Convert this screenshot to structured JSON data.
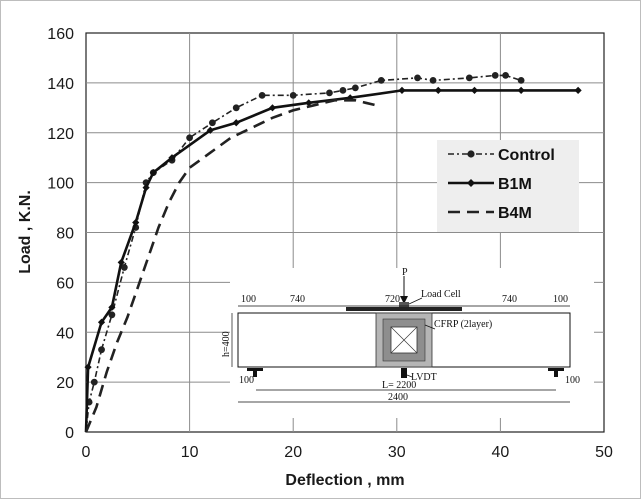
{
  "chart_data": {
    "type": "line",
    "title": "",
    "xlabel": "Deflection , mm",
    "ylabel": "Load , K.N.",
    "xlim": [
      0,
      50
    ],
    "ylim": [
      0,
      160
    ],
    "xticks": [
      0,
      10,
      20,
      30,
      40,
      50
    ],
    "yticks": [
      0,
      20,
      40,
      60,
      80,
      100,
      120,
      140,
      160
    ],
    "grid": true,
    "legend_position": "right",
    "series": [
      {
        "name": "Control",
        "style": "dash-dot",
        "marker": "circle",
        "color": "#222222",
        "points": [
          [
            0,
            0
          ],
          [
            0.3,
            12
          ],
          [
            0.8,
            20
          ],
          [
            1.5,
            33
          ],
          [
            2.5,
            47
          ],
          [
            3.7,
            66
          ],
          [
            4.8,
            82
          ],
          [
            5.8,
            100
          ],
          [
            6.5,
            104
          ],
          [
            8.3,
            109
          ],
          [
            10,
            118
          ],
          [
            12.2,
            124
          ],
          [
            14.5,
            130
          ],
          [
            17,
            135
          ],
          [
            20,
            135
          ],
          [
            23.5,
            136
          ],
          [
            24.8,
            137
          ],
          [
            26,
            138
          ],
          [
            28.5,
            141
          ],
          [
            32,
            142
          ],
          [
            33.5,
            141
          ],
          [
            37,
            142
          ],
          [
            39.5,
            143
          ],
          [
            40.5,
            143
          ],
          [
            42,
            141
          ]
        ]
      },
      {
        "name": "B1M",
        "style": "solid",
        "marker": "diamond",
        "color": "#111111",
        "points": [
          [
            0,
            0
          ],
          [
            0.2,
            26
          ],
          [
            1.5,
            44
          ],
          [
            2.5,
            50
          ],
          [
            3.4,
            68
          ],
          [
            4.8,
            84
          ],
          [
            5.8,
            98
          ],
          [
            6.5,
            104
          ],
          [
            8.3,
            110
          ],
          [
            12,
            121
          ],
          [
            14.5,
            124
          ],
          [
            18,
            130
          ],
          [
            21.5,
            132
          ],
          [
            25.5,
            134
          ],
          [
            30.5,
            137
          ],
          [
            34,
            137
          ],
          [
            37.5,
            137
          ],
          [
            42,
            137
          ],
          [
            47.5,
            137
          ]
        ]
      },
      {
        "name": "B4M",
        "style": "dashed",
        "marker": "none",
        "color": "#222222",
        "points": [
          [
            0,
            0
          ],
          [
            1,
            10
          ],
          [
            2,
            24
          ],
          [
            3,
            36
          ],
          [
            4,
            46
          ],
          [
            5,
            58
          ],
          [
            6,
            70
          ],
          [
            7,
            82
          ],
          [
            8,
            92
          ],
          [
            9,
            100
          ],
          [
            10,
            106
          ],
          [
            12,
            112
          ],
          [
            14,
            118
          ],
          [
            16,
            122
          ],
          [
            18,
            126
          ],
          [
            20,
            129
          ],
          [
            22,
            131
          ],
          [
            24,
            133
          ],
          [
            26,
            133
          ],
          [
            27,
            132
          ],
          [
            28,
            131
          ]
        ]
      }
    ]
  },
  "inset_diagram": {
    "load_label": "P",
    "load_cell_label": "Load Cell",
    "cfrp_label": "CFRP (2layer)",
    "lvdt_label": "LVDT",
    "height_label": "h=400",
    "span_label": "L= 2200",
    "total_label": "2400",
    "dims_top": [
      "100",
      "740",
      "720",
      "740",
      "100"
    ],
    "dims_bottom": [
      "100",
      "100"
    ]
  }
}
